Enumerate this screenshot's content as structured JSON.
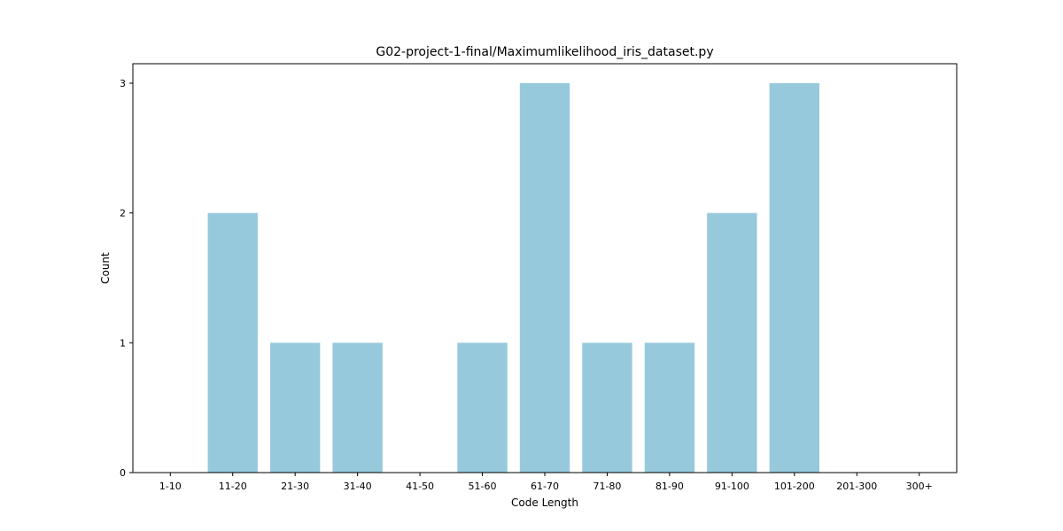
{
  "chart_data": {
    "type": "bar",
    "title": "G02-project-1-final/Maximumlikelihood_iris_dataset.py",
    "xlabel": "Code Length",
    "ylabel": "Count",
    "categories": [
      "1-10",
      "11-20",
      "21-30",
      "31-40",
      "41-50",
      "51-60",
      "61-70",
      "71-80",
      "81-90",
      "91-100",
      "101-200",
      "201-300",
      "300+"
    ],
    "values": [
      0,
      2,
      1,
      1,
      0,
      1,
      3,
      1,
      1,
      2,
      3,
      0,
      0
    ],
    "yticks": [
      0,
      1,
      2,
      3
    ],
    "ylim": [
      0,
      3.15
    ],
    "bar_color": "#96c9dc",
    "grid": false,
    "legend": "none"
  }
}
